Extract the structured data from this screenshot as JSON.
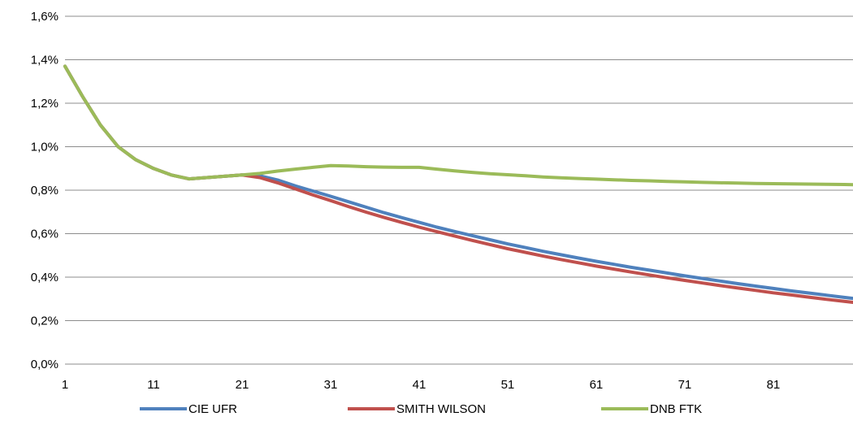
{
  "chart_data": {
    "type": "line",
    "title": "",
    "xlabel": "",
    "ylabel": "",
    "x_ticks": [
      "1",
      "11",
      "21",
      "31",
      "41",
      "51",
      "61",
      "71",
      "81"
    ],
    "y_ticks": [
      "0,0%",
      "0,2%",
      "0,4%",
      "0,6%",
      "0,8%",
      "1,0%",
      "1,2%",
      "1,4%",
      "1,6%"
    ],
    "xlim": [
      1,
      90
    ],
    "ylim": [
      0,
      1.6
    ],
    "y_unit": "%",
    "grid": "horizontal",
    "legend_position": "bottom",
    "x": [
      1,
      3,
      5,
      7,
      9,
      11,
      13,
      15,
      17,
      19,
      21,
      23,
      25,
      27,
      29,
      31,
      33,
      35,
      37,
      39,
      41,
      43,
      45,
      47,
      49,
      51,
      53,
      55,
      57,
      59,
      61,
      63,
      65,
      67,
      69,
      71,
      73,
      75,
      77,
      79,
      81,
      83,
      85,
      87,
      89,
      90
    ],
    "series": [
      {
        "name": "CIE UFR",
        "color": "#4F81BD",
        "values": [
          1.37,
          1.23,
          1.1,
          1.0,
          0.94,
          0.9,
          0.87,
          0.852,
          0.858,
          0.864,
          0.87,
          0.866,
          0.847,
          0.82,
          0.796,
          0.772,
          0.747,
          0.722,
          0.697,
          0.674,
          0.652,
          0.63,
          0.61,
          0.591,
          0.572,
          0.553,
          0.536,
          0.519,
          0.503,
          0.488,
          0.473,
          0.459,
          0.445,
          0.432,
          0.419,
          0.406,
          0.394,
          0.382,
          0.37,
          0.359,
          0.348,
          0.337,
          0.327,
          0.317,
          0.307,
          0.302
        ]
      },
      {
        "name": "SMITH WILSON",
        "color": "#C0504D",
        "values": [
          1.37,
          1.23,
          1.1,
          1.0,
          0.94,
          0.9,
          0.87,
          0.852,
          0.858,
          0.864,
          0.87,
          0.858,
          0.834,
          0.806,
          0.778,
          0.752,
          0.725,
          0.699,
          0.675,
          0.652,
          0.63,
          0.609,
          0.589,
          0.569,
          0.55,
          0.531,
          0.514,
          0.497,
          0.481,
          0.466,
          0.451,
          0.437,
          0.423,
          0.41,
          0.397,
          0.385,
          0.373,
          0.361,
          0.35,
          0.339,
          0.328,
          0.318,
          0.308,
          0.298,
          0.289,
          0.284
        ]
      },
      {
        "name": "DNB FTK",
        "color": "#9BBB59",
        "values": [
          1.37,
          1.23,
          1.1,
          1.0,
          0.94,
          0.9,
          0.87,
          0.852,
          0.858,
          0.864,
          0.87,
          0.877,
          0.888,
          0.897,
          0.905,
          0.913,
          0.911,
          0.908,
          0.906,
          0.905,
          0.905,
          0.897,
          0.889,
          0.882,
          0.876,
          0.871,
          0.866,
          0.861,
          0.857,
          0.854,
          0.851,
          0.848,
          0.845,
          0.843,
          0.84,
          0.838,
          0.836,
          0.834,
          0.833,
          0.831,
          0.83,
          0.829,
          0.828,
          0.827,
          0.826,
          0.825
        ]
      }
    ]
  }
}
